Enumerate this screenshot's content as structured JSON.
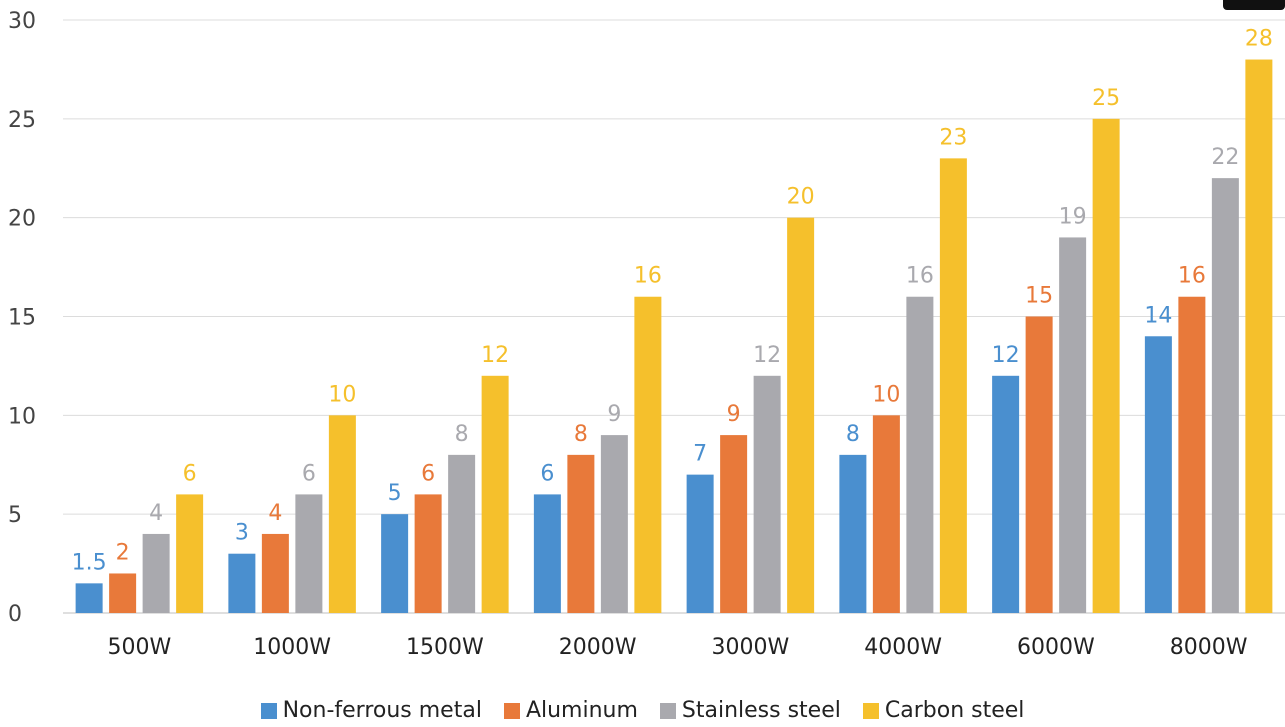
{
  "chart_data": {
    "type": "bar",
    "title": "",
    "xlabel": "",
    "ylabel": "",
    "ylim": [
      0,
      30
    ],
    "yticks": [
      0,
      5,
      10,
      15,
      20,
      25,
      30
    ],
    "grid": true,
    "legend_position": "bottom",
    "categories": [
      "500W",
      "1000W",
      "1500W",
      "2000W",
      "3000W",
      "4000W",
      "6000W",
      "8000W"
    ],
    "series": [
      {
        "name": "Non-ferrous metal",
        "color": "#4a8fcf",
        "values": [
          1.5,
          3,
          5,
          6,
          7,
          8,
          12,
          14
        ]
      },
      {
        "name": "Aluminum",
        "color": "#e8793a",
        "values": [
          2,
          4,
          6,
          8,
          9,
          10,
          15,
          16
        ]
      },
      {
        "name": "Stainless steel",
        "color": "#a9a9ae",
        "values": [
          4,
          6,
          8,
          9,
          12,
          16,
          19,
          22
        ]
      },
      {
        "name": "Carbon steel",
        "color": "#f5c02c",
        "values": [
          6,
          10,
          12,
          16,
          20,
          23,
          25,
          28
        ]
      }
    ]
  }
}
